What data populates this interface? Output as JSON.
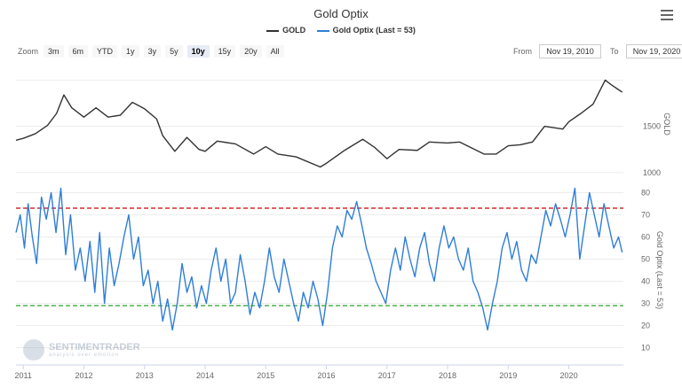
{
  "toolbar": {
    "zoom_label": "Zoom",
    "zoom_buttons": [
      "3m",
      "6m",
      "YTD",
      "1y",
      "3y",
      "5y",
      "10y",
      "15y",
      "20y",
      "All"
    ],
    "zoom_active": "10y",
    "from_label": "From",
    "from_value": "Nov 19, 2010",
    "to_label": "To",
    "to_value": "Nov 19, 2020"
  },
  "watermark": {
    "name": "SENTIMENTRADER",
    "tagline": "analysis over emotion"
  },
  "chart_data": {
    "type": "line",
    "title": "Gold Optix",
    "x_axis": {
      "ticks": [
        "2011",
        "2012",
        "2013",
        "2014",
        "2015",
        "2016",
        "2017",
        "2018",
        "2019",
        "2020"
      ]
    },
    "panels": [
      {
        "name": "GOLD",
        "axis_label": "GOLD",
        "axis_side": "right",
        "ticks": [
          1000,
          1500
        ],
        "series": [
          {
            "name": "GOLD",
            "color": "#333333",
            "points": [
              [
                2010.88,
                1350
              ],
              [
                2011.0,
                1370
              ],
              [
                2011.2,
                1420
              ],
              [
                2011.4,
                1510
              ],
              [
                2011.55,
                1640
              ],
              [
                2011.67,
                1840
              ],
              [
                2011.8,
                1700
              ],
              [
                2012.0,
                1600
              ],
              [
                2012.2,
                1700
              ],
              [
                2012.4,
                1600
              ],
              [
                2012.6,
                1620
              ],
              [
                2012.8,
                1760
              ],
              [
                2013.0,
                1690
              ],
              [
                2013.2,
                1580
              ],
              [
                2013.3,
                1400
              ],
              [
                2013.5,
                1230
              ],
              [
                2013.7,
                1380
              ],
              [
                2013.9,
                1250
              ],
              [
                2014.0,
                1230
              ],
              [
                2014.2,
                1340
              ],
              [
                2014.5,
                1310
              ],
              [
                2014.8,
                1200
              ],
              [
                2015.0,
                1280
              ],
              [
                2015.2,
                1200
              ],
              [
                2015.5,
                1170
              ],
              [
                2015.9,
                1060
              ],
              [
                2016.0,
                1100
              ],
              [
                2016.3,
                1240
              ],
              [
                2016.6,
                1360
              ],
              [
                2016.8,
                1270
              ],
              [
                2017.0,
                1150
              ],
              [
                2017.2,
                1250
              ],
              [
                2017.5,
                1240
              ],
              [
                2017.7,
                1330
              ],
              [
                2018.0,
                1320
              ],
              [
                2018.2,
                1330
              ],
              [
                2018.6,
                1200
              ],
              [
                2018.8,
                1200
              ],
              [
                2019.0,
                1290
              ],
              [
                2019.2,
                1300
              ],
              [
                2019.4,
                1330
              ],
              [
                2019.6,
                1500
              ],
              [
                2019.9,
                1470
              ],
              [
                2020.0,
                1550
              ],
              [
                2020.2,
                1640
              ],
              [
                2020.4,
                1740
              ],
              [
                2020.6,
                2000
              ],
              [
                2020.7,
                1950
              ],
              [
                2020.88,
                1870
              ]
            ]
          }
        ]
      },
      {
        "name": "Gold Optix",
        "axis_label": "Gold Optix (Last = 53)",
        "axis_side": "right",
        "ticks": [
          10,
          20,
          30,
          40,
          50,
          60,
          70,
          80
        ],
        "reference_lines": [
          {
            "value": 73,
            "color": "#cc0000",
            "style": "dashed"
          },
          {
            "value": 29,
            "color": "#2ca02c",
            "style": "dashed"
          }
        ],
        "series": [
          {
            "name": "Gold Optix (Last = 53)",
            "color": "#2f7ed8",
            "points": [
              [
                2010.88,
                62
              ],
              [
                2010.95,
                70
              ],
              [
                2011.02,
                55
              ],
              [
                2011.08,
                75
              ],
              [
                2011.15,
                60
              ],
              [
                2011.22,
                48
              ],
              [
                2011.3,
                78
              ],
              [
                2011.38,
                68
              ],
              [
                2011.46,
                80
              ],
              [
                2011.54,
                62
              ],
              [
                2011.62,
                82
              ],
              [
                2011.7,
                52
              ],
              [
                2011.78,
                70
              ],
              [
                2011.86,
                45
              ],
              [
                2011.94,
                55
              ],
              [
                2012.02,
                40
              ],
              [
                2012.1,
                58
              ],
              [
                2012.18,
                35
              ],
              [
                2012.26,
                62
              ],
              [
                2012.34,
                30
              ],
              [
                2012.42,
                55
              ],
              [
                2012.5,
                38
              ],
              [
                2012.58,
                48
              ],
              [
                2012.66,
                60
              ],
              [
                2012.74,
                70
              ],
              [
                2012.82,
                50
              ],
              [
                2012.9,
                60
              ],
              [
                2012.98,
                38
              ],
              [
                2013.06,
                45
              ],
              [
                2013.14,
                30
              ],
              [
                2013.22,
                40
              ],
              [
                2013.3,
                22
              ],
              [
                2013.38,
                32
              ],
              [
                2013.46,
                18
              ],
              [
                2013.54,
                30
              ],
              [
                2013.62,
                48
              ],
              [
                2013.7,
                35
              ],
              [
                2013.78,
                42
              ],
              [
                2013.86,
                28
              ],
              [
                2013.94,
                38
              ],
              [
                2014.02,
                30
              ],
              [
                2014.1,
                45
              ],
              [
                2014.18,
                55
              ],
              [
                2014.26,
                40
              ],
              [
                2014.34,
                50
              ],
              [
                2014.42,
                30
              ],
              [
                2014.5,
                35
              ],
              [
                2014.58,
                52
              ],
              [
                2014.66,
                40
              ],
              [
                2014.74,
                25
              ],
              [
                2014.82,
                35
              ],
              [
                2014.9,
                28
              ],
              [
                2014.98,
                40
              ],
              [
                2015.06,
                55
              ],
              [
                2015.14,
                42
              ],
              [
                2015.22,
                35
              ],
              [
                2015.3,
                50
              ],
              [
                2015.38,
                40
              ],
              [
                2015.46,
                30
              ],
              [
                2015.54,
                22
              ],
              [
                2015.62,
                35
              ],
              [
                2015.7,
                28
              ],
              [
                2015.78,
                40
              ],
              [
                2015.86,
                32
              ],
              [
                2015.94,
                20
              ],
              [
                2016.02,
                35
              ],
              [
                2016.1,
                55
              ],
              [
                2016.18,
                65
              ],
              [
                2016.26,
                60
              ],
              [
                2016.34,
                72
              ],
              [
                2016.42,
                68
              ],
              [
                2016.5,
                76
              ],
              [
                2016.58,
                66
              ],
              [
                2016.66,
                55
              ],
              [
                2016.74,
                48
              ],
              [
                2016.82,
                40
              ],
              [
                2016.9,
                35
              ],
              [
                2016.98,
                30
              ],
              [
                2017.06,
                45
              ],
              [
                2017.14,
                55
              ],
              [
                2017.22,
                45
              ],
              [
                2017.3,
                60
              ],
              [
                2017.38,
                50
              ],
              [
                2017.46,
                42
              ],
              [
                2017.54,
                55
              ],
              [
                2017.62,
                62
              ],
              [
                2017.7,
                48
              ],
              [
                2017.78,
                40
              ],
              [
                2017.86,
                55
              ],
              [
                2017.94,
                65
              ],
              [
                2018.02,
                55
              ],
              [
                2018.1,
                60
              ],
              [
                2018.18,
                50
              ],
              [
                2018.26,
                45
              ],
              [
                2018.34,
                55
              ],
              [
                2018.42,
                40
              ],
              [
                2018.5,
                35
              ],
              [
                2018.58,
                28
              ],
              [
                2018.66,
                18
              ],
              [
                2018.74,
                30
              ],
              [
                2018.82,
                40
              ],
              [
                2018.9,
                55
              ],
              [
                2018.98,
                62
              ],
              [
                2019.06,
                50
              ],
              [
                2019.14,
                58
              ],
              [
                2019.22,
                45
              ],
              [
                2019.3,
                40
              ],
              [
                2019.38,
                52
              ],
              [
                2019.46,
                48
              ],
              [
                2019.54,
                60
              ],
              [
                2019.62,
                72
              ],
              [
                2019.7,
                65
              ],
              [
                2019.78,
                75
              ],
              [
                2019.86,
                68
              ],
              [
                2019.94,
                60
              ],
              [
                2020.02,
                70
              ],
              [
                2020.1,
                82
              ],
              [
                2020.18,
                50
              ],
              [
                2020.26,
                65
              ],
              [
                2020.34,
                80
              ],
              [
                2020.42,
                70
              ],
              [
                2020.5,
                60
              ],
              [
                2020.58,
                75
              ],
              [
                2020.66,
                65
              ],
              [
                2020.74,
                55
              ],
              [
                2020.82,
                60
              ],
              [
                2020.88,
                53
              ]
            ]
          }
        ]
      }
    ]
  }
}
